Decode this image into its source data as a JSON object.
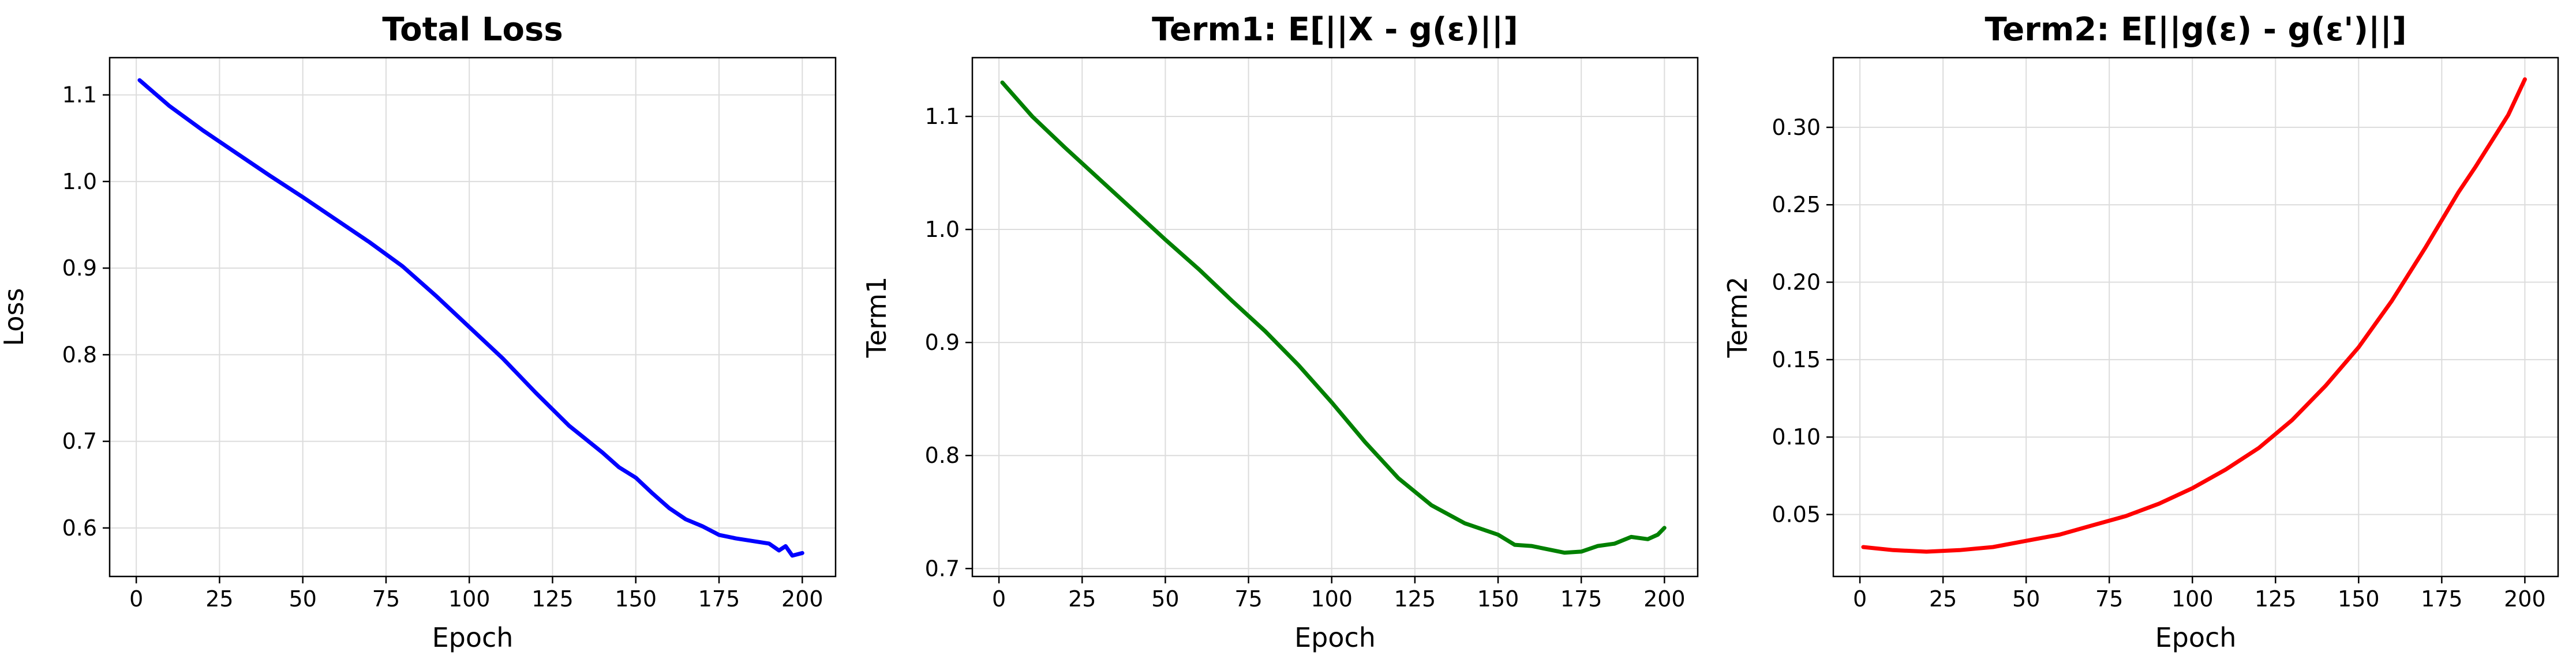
{
  "chart_data": [
    {
      "type": "line",
      "title": "Total Loss",
      "xlabel": "Epoch",
      "ylabel": "Loss",
      "xlim": [
        -8,
        210
      ],
      "ylim": [
        0.544,
        1.143
      ],
      "xticks": [
        0,
        25,
        50,
        75,
        100,
        125,
        150,
        175,
        200
      ],
      "xtick_labels": [
        "0",
        "25",
        "50",
        "75",
        "100",
        "125",
        "150",
        "175",
        "200"
      ],
      "yticks": [
        0.6,
        0.7,
        0.8,
        0.9,
        1.0,
        1.1
      ],
      "ytick_labels": [
        "0.6",
        "0.7",
        "0.8",
        "0.9",
        "1.0",
        "1.1"
      ],
      "grid": true,
      "color": "#0000ff",
      "series": [
        {
          "x": [
            1,
            10,
            20,
            30,
            40,
            50,
            60,
            70,
            80,
            90,
            100,
            110,
            120,
            130,
            140,
            145,
            150,
            155,
            160,
            165,
            170,
            175,
            180,
            185,
            190,
            193,
            195,
            197,
            200
          ],
          "y": [
            1.117,
            1.087,
            1.059,
            1.033,
            1.007,
            0.982,
            0.956,
            0.93,
            0.902,
            0.868,
            0.832,
            0.796,
            0.756,
            0.718,
            0.687,
            0.67,
            0.658,
            0.64,
            0.623,
            0.61,
            0.602,
            0.592,
            0.588,
            0.585,
            0.582,
            0.574,
            0.579,
            0.568,
            0.571
          ]
        }
      ]
    },
    {
      "type": "line",
      "title": "Term1: E[||X - g(ε)||]",
      "xlabel": "Epoch",
      "ylabel": "Term1",
      "xlim": [
        -8,
        210
      ],
      "ylim": [
        0.693,
        1.152
      ],
      "xticks": [
        0,
        25,
        50,
        75,
        100,
        125,
        150,
        175,
        200
      ],
      "xtick_labels": [
        "0",
        "25",
        "50",
        "75",
        "100",
        "125",
        "150",
        "175",
        "200"
      ],
      "yticks": [
        0.7,
        0.8,
        0.9,
        1.0,
        1.1
      ],
      "ytick_labels": [
        "0.7",
        "0.8",
        "0.9",
        "1.0",
        "1.1"
      ],
      "grid": true,
      "color": "#008000",
      "series": [
        {
          "x": [
            1,
            10,
            20,
            30,
            40,
            50,
            60,
            70,
            80,
            90,
            100,
            110,
            120,
            130,
            140,
            150,
            155,
            160,
            165,
            170,
            175,
            180,
            185,
            190,
            195,
            198,
            200
          ],
          "y": [
            1.13,
            1.1,
            1.072,
            1.045,
            1.018,
            0.991,
            0.965,
            0.937,
            0.91,
            0.88,
            0.847,
            0.812,
            0.78,
            0.756,
            0.74,
            0.73,
            0.721,
            0.72,
            0.717,
            0.714,
            0.715,
            0.72,
            0.722,
            0.728,
            0.726,
            0.73,
            0.736
          ]
        }
      ]
    },
    {
      "type": "line",
      "title": "Term2: E[||g(ε) - g(ε')||]",
      "xlabel": "Epoch",
      "ylabel": "Term2",
      "xlim": [
        -8,
        210
      ],
      "ylim": [
        0.01,
        0.345
      ],
      "xticks": [
        0,
        25,
        50,
        75,
        100,
        125,
        150,
        175,
        200
      ],
      "xtick_labels": [
        "0",
        "25",
        "50",
        "75",
        "100",
        "125",
        "150",
        "175",
        "200"
      ],
      "yticks": [
        0.05,
        0.1,
        0.15,
        0.2,
        0.25,
        0.3
      ],
      "ytick_labels": [
        "0.05",
        "0.10",
        "0.15",
        "0.20",
        "0.25",
        "0.30"
      ],
      "grid": true,
      "color": "#ff0000",
      "series": [
        {
          "x": [
            1,
            10,
            20,
            30,
            40,
            50,
            60,
            70,
            80,
            90,
            100,
            110,
            120,
            130,
            140,
            150,
            160,
            170,
            180,
            185,
            190,
            195,
            200
          ],
          "y": [
            0.029,
            0.027,
            0.026,
            0.027,
            0.029,
            0.033,
            0.037,
            0.043,
            0.049,
            0.057,
            0.067,
            0.079,
            0.093,
            0.111,
            0.133,
            0.158,
            0.188,
            0.222,
            0.258,
            0.274,
            0.291,
            0.308,
            0.331
          ]
        }
      ]
    }
  ]
}
